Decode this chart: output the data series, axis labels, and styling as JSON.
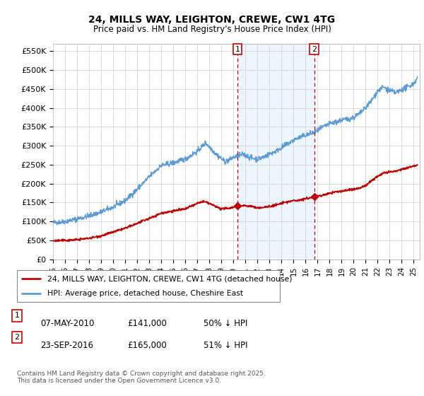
{
  "title": "24, MILLS WAY, LEIGHTON, CREWE, CW1 4TG",
  "subtitle": "Price paid vs. HM Land Registry's House Price Index (HPI)",
  "ylabel_ticks": [
    "£0",
    "£50K",
    "£100K",
    "£150K",
    "£200K",
    "£250K",
    "£300K",
    "£350K",
    "£400K",
    "£450K",
    "£500K",
    "£550K"
  ],
  "ytick_values": [
    0,
    50000,
    100000,
    150000,
    200000,
    250000,
    300000,
    350000,
    400000,
    450000,
    500000,
    550000
  ],
  "ylim": [
    0,
    570000
  ],
  "xlim_start": 1995.0,
  "xlim_end": 2025.5,
  "xtick_years": [
    1995,
    1996,
    1997,
    1998,
    1999,
    2000,
    2001,
    2002,
    2003,
    2004,
    2005,
    2006,
    2007,
    2008,
    2009,
    2010,
    2011,
    2012,
    2013,
    2014,
    2015,
    2016,
    2017,
    2018,
    2019,
    2020,
    2021,
    2022,
    2023,
    2024,
    2025
  ],
  "marker1_x": 2010.35,
  "marker1_y": 141000,
  "marker1_label": "1",
  "marker2_x": 2016.73,
  "marker2_y": 165000,
  "marker2_label": "2",
  "shade_color": "#ddeeff",
  "shade_alpha": 0.5,
  "legend_line1": "24, MILLS WAY, LEIGHTON, CREWE, CW1 4TG (detached house)",
  "legend_line2": "HPI: Average price, detached house, Cheshire East",
  "annotation1_date": "07-MAY-2010",
  "annotation1_price": "£141,000",
  "annotation1_hpi": "50% ↓ HPI",
  "annotation2_date": "23-SEP-2016",
  "annotation2_price": "£165,000",
  "annotation2_hpi": "51% ↓ HPI",
  "footer": "Contains HM Land Registry data © Crown copyright and database right 2025.\nThis data is licensed under the Open Government Licence v3.0.",
  "hpi_color": "#5b9bd5",
  "price_color": "#c00000",
  "background_color": "#ffffff",
  "grid_color": "#cccccc",
  "vline_color": "#cc0000"
}
